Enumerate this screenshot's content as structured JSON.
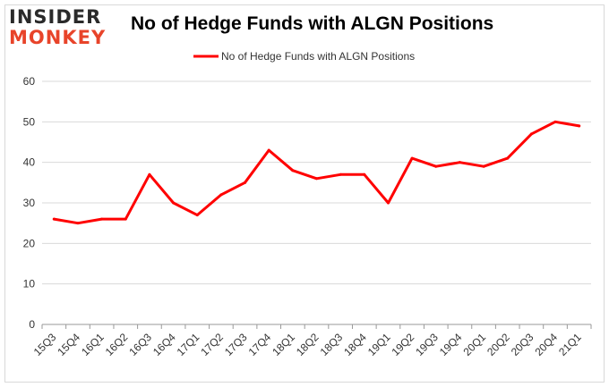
{
  "brand": {
    "line1": "INSIDER",
    "line2": "MONKEY"
  },
  "chart_data": {
    "type": "line",
    "title": "No of Hedge Funds with ALGN Positions",
    "categories": [
      "15Q3",
      "15Q4",
      "16Q1",
      "16Q2",
      "16Q3",
      "16Q4",
      "17Q1",
      "17Q2",
      "17Q3",
      "17Q4",
      "18Q1",
      "18Q2",
      "18Q3",
      "18Q4",
      "19Q1",
      "19Q2",
      "19Q3",
      "19Q4",
      "20Q1",
      "20Q2",
      "20Q3",
      "20Q4",
      "21Q1"
    ],
    "series": [
      {
        "name": "No of Hedge Funds with ALGN Positions",
        "values": [
          26,
          25,
          26,
          26,
          37,
          30,
          27,
          32,
          35,
          43,
          38,
          36,
          37,
          37,
          30,
          41,
          39,
          40,
          39,
          41,
          47,
          50,
          49
        ]
      }
    ],
    "ylim": [
      0,
      60
    ],
    "yticks": [
      0,
      10,
      20,
      30,
      40,
      50,
      60
    ],
    "grid": true,
    "legend": "top-center",
    "colors": {
      "line": "#ff0000",
      "grid": "#d9d9d9",
      "axis": "#999999"
    }
  }
}
